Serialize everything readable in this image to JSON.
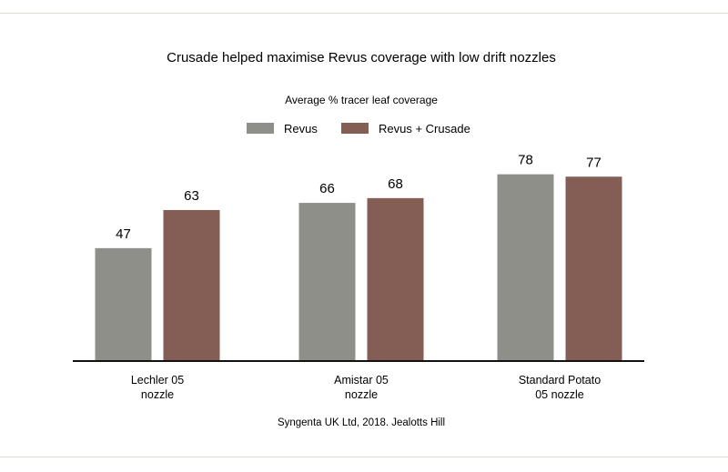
{
  "chart_data": {
    "type": "bar",
    "title": "Crusade helped maximise Revus coverage with low drift nozzles",
    "subtitle": "Average % tracer leaf coverage",
    "categories": [
      [
        "Lechler 05",
        "nozzle"
      ],
      [
        "Amistar 05",
        "nozzle"
      ],
      [
        "Standard Potato",
        "05 nozzle"
      ]
    ],
    "series": [
      {
        "name": "Revus",
        "color": "#8f8f89",
        "values": [
          47,
          66,
          78
        ]
      },
      {
        "name": "Revus + Crusade",
        "color": "#845d55",
        "values": [
          63,
          68,
          77
        ]
      }
    ],
    "ylim": [
      0,
      100
    ],
    "grid": false,
    "legend": "top-center",
    "show_value_labels": true,
    "source": "Syngenta UK Ltd, 2018. Jealotts Hill"
  }
}
